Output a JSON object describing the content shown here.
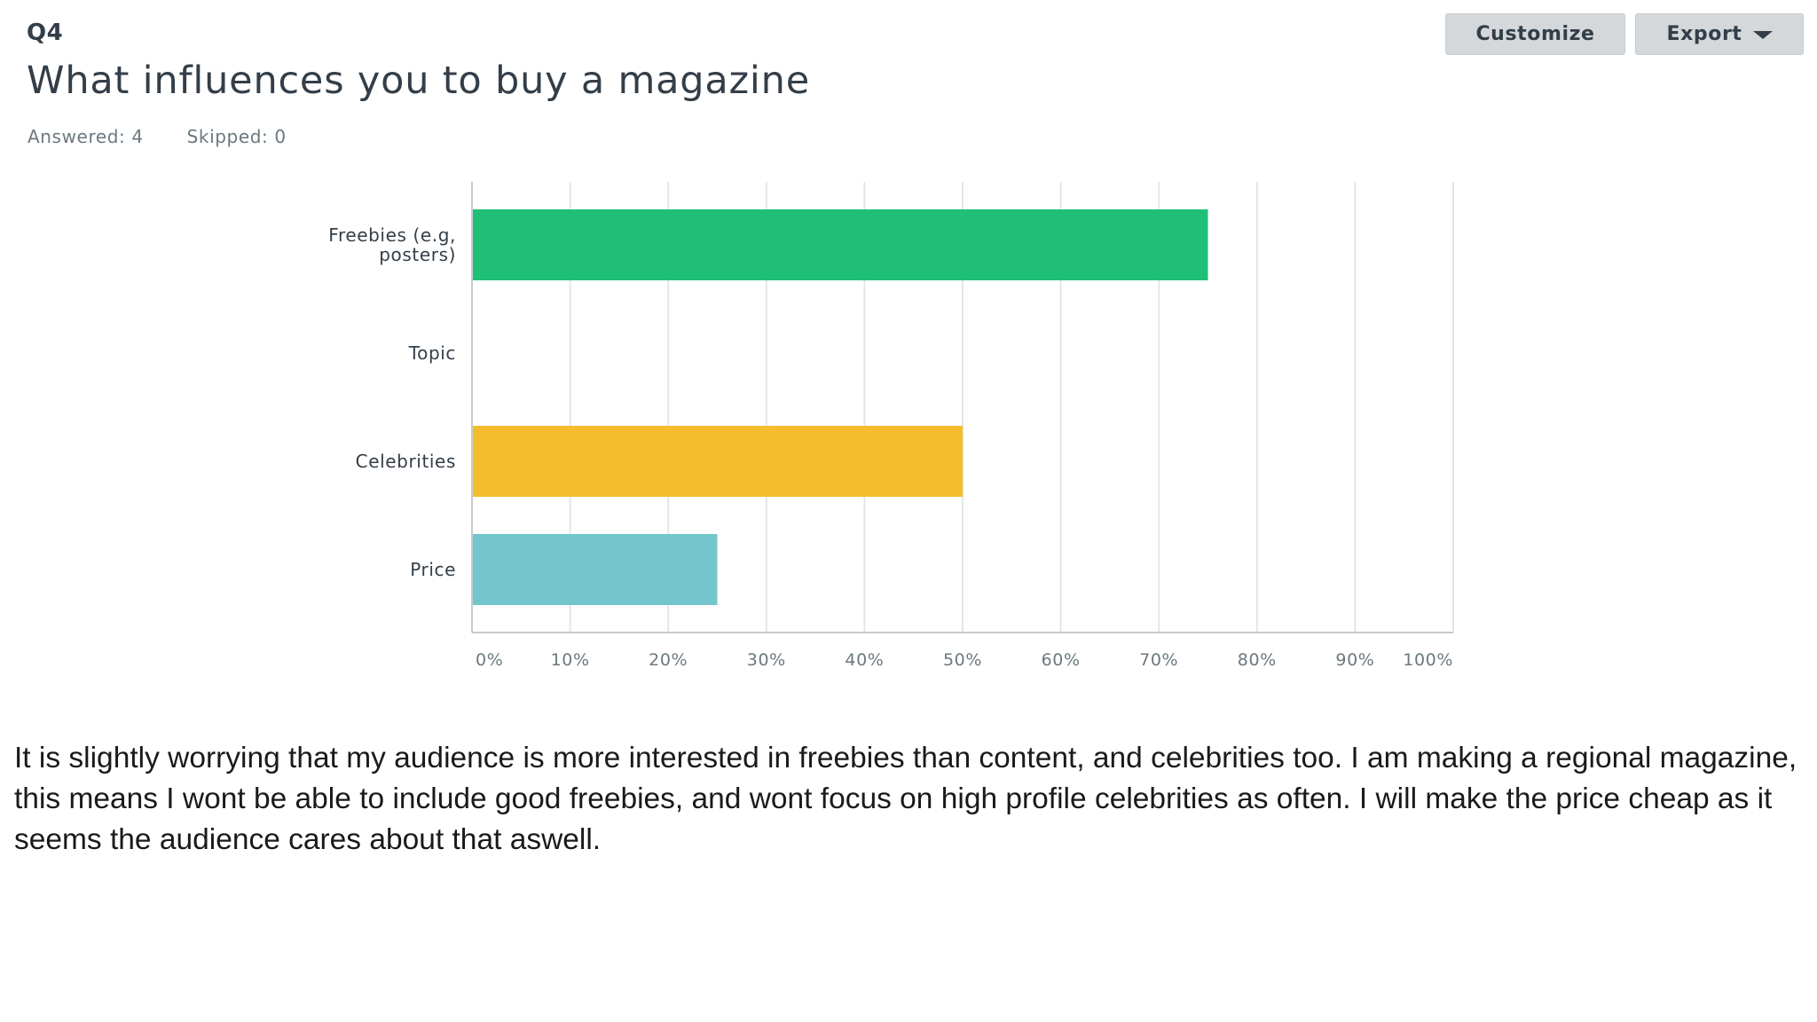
{
  "question": {
    "number": "Q4",
    "title": "What influences you to buy a magazine",
    "answered": "Answered: 4",
    "skipped": "Skipped: 0"
  },
  "toolbar": {
    "customize_label": "Customize",
    "export_label": "Export"
  },
  "chart_data": {
    "type": "bar",
    "orientation": "horizontal",
    "categories": [
      [
        "Freebies (e.g,",
        "posters)"
      ],
      [
        "Topic"
      ],
      [
        "Celebrities"
      ],
      [
        "Price"
      ]
    ],
    "values": [
      75,
      0,
      50,
      25
    ],
    "colors": [
      "#1fbf77",
      "#1fbf77",
      "#f5bc2e",
      "#72c6cc"
    ],
    "xlim": [
      0,
      100
    ],
    "xticks": [
      0,
      10,
      20,
      30,
      40,
      50,
      60,
      70,
      80,
      90,
      100
    ],
    "xtick_labels": [
      "0%",
      "10%",
      "20%",
      "30%",
      "40%",
      "50%",
      "60%",
      "70%",
      "80%",
      "90%",
      "100%"
    ],
    "grid": true
  },
  "commentary": "It is slightly worrying that my audience is more interested in freebies than content, and celebrities too. I am making a regional magazine, this means I wont be able to include good freebies, and wont focus on high profile celebrities as often. I will make the price cheap as it seems the audience cares about that aswell."
}
